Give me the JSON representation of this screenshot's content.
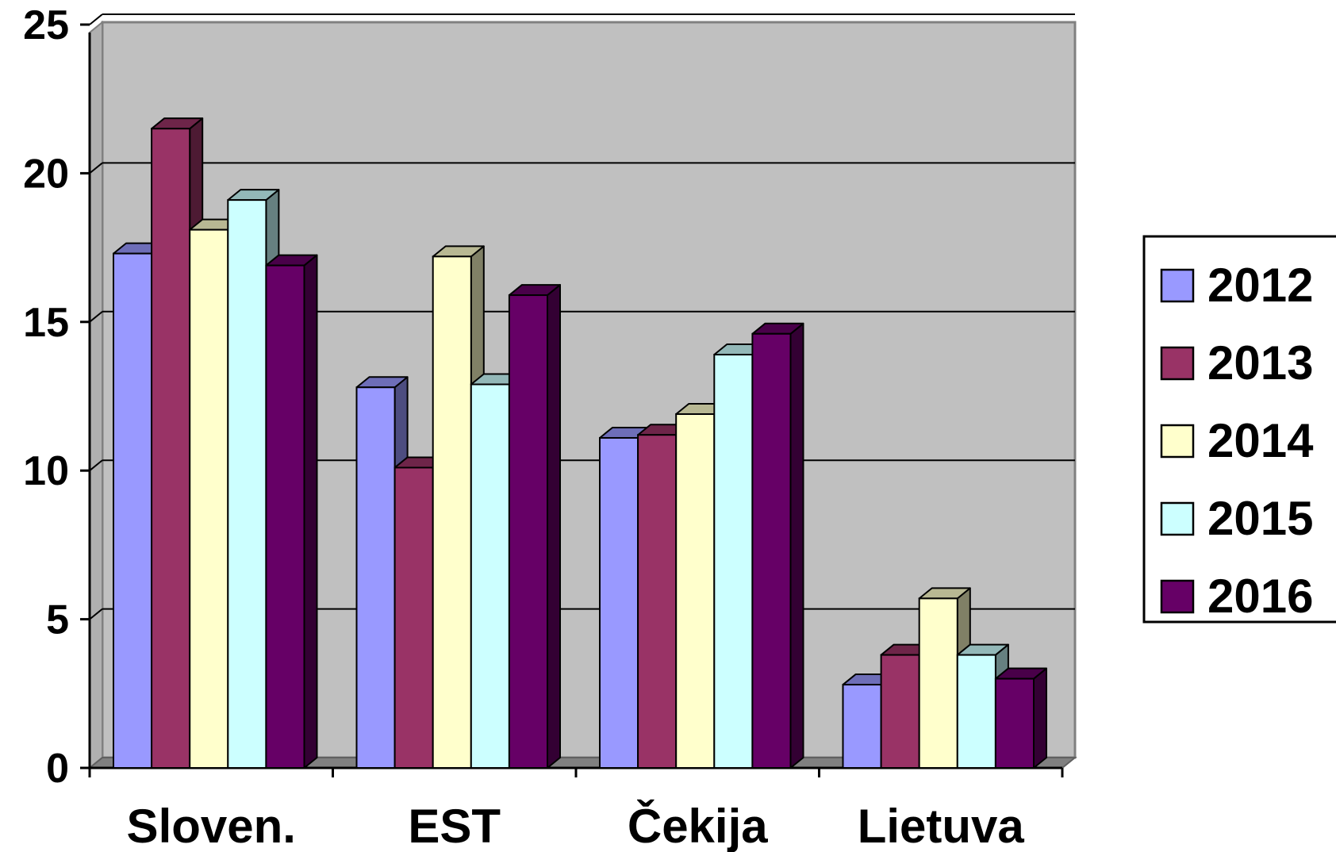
{
  "chart_data": {
    "type": "bar",
    "categories": [
      "Sloven.",
      "EST",
      "Čekija",
      "Lietuva"
    ],
    "series": [
      {
        "name": "2012",
        "color": "#9999FF",
        "values": [
          17.3,
          12.8,
          11.1,
          2.8
        ]
      },
      {
        "name": "2013",
        "color": "#993366",
        "values": [
          21.5,
          10.1,
          11.2,
          3.8
        ]
      },
      {
        "name": "2014",
        "color": "#FFFFCC",
        "values": [
          18.1,
          17.2,
          11.9,
          5.7
        ]
      },
      {
        "name": "2015",
        "color": "#CCFFFF",
        "values": [
          19.1,
          12.9,
          13.9,
          3.8
        ]
      },
      {
        "name": "2016",
        "color": "#660066",
        "values": [
          16.9,
          15.9,
          14.6,
          3.0
        ]
      }
    ],
    "y_ticks": [
      "0",
      "5",
      "10",
      "15",
      "20",
      "25"
    ],
    "ylim": [
      0,
      25
    ],
    "grid": true,
    "legend_position": "right",
    "plot_background": "#C0C0C0",
    "style": "3d-clustered-column"
  }
}
